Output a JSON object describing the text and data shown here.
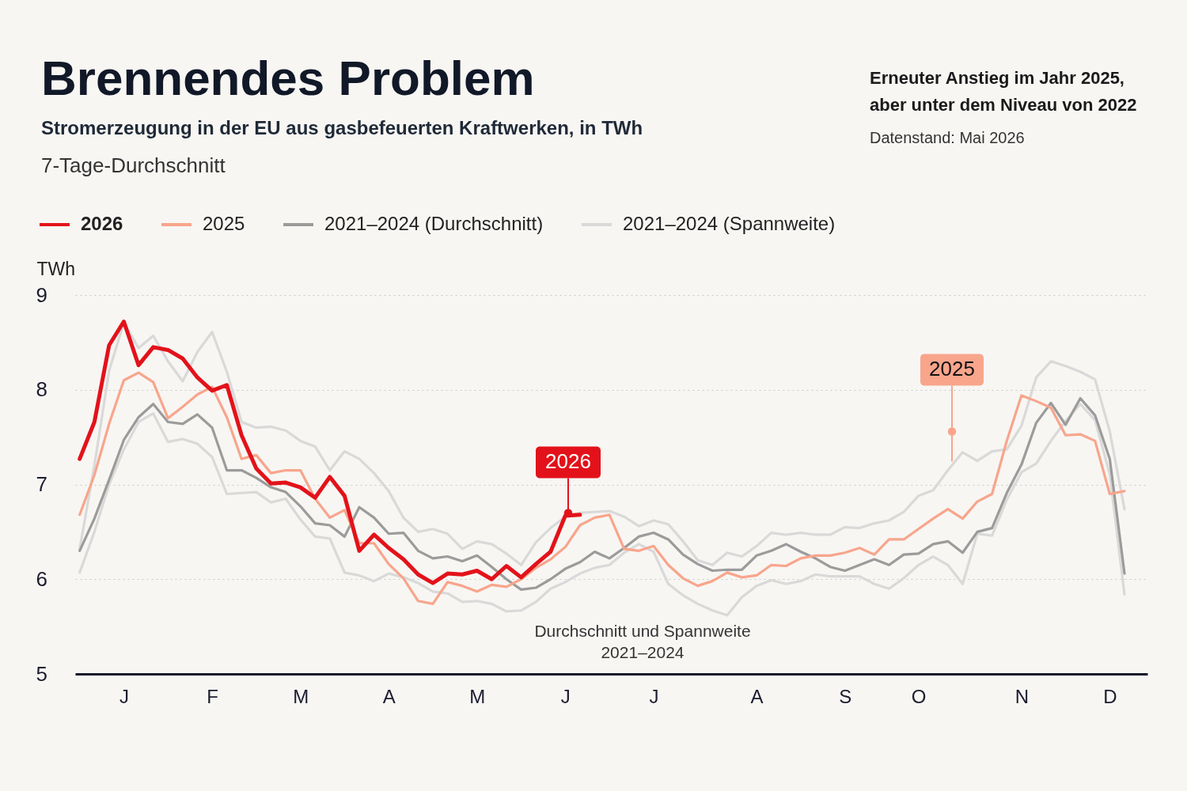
{
  "chart_data": {
    "type": "line",
    "title": "Brennendes Problem",
    "subtitle": "Stromerzeugung in der EU aus gasbefeuerten Kraftwerken, in TWh",
    "ylabel": "TWh",
    "categories": [
      null,
      null,
      null,
      "J",
      null,
      null,
      null,
      null,
      null,
      "F",
      null,
      null,
      null,
      null,
      null,
      "M",
      null,
      null,
      null,
      null,
      null,
      "A",
      null,
      null,
      null,
      null,
      null,
      "M",
      null,
      null,
      null,
      null,
      null,
      "J",
      null,
      null,
      null,
      null,
      null,
      "J",
      null,
      null,
      null,
      null,
      null,
      null,
      "A",
      null,
      null,
      null,
      null,
      null,
      "S",
      null,
      null,
      null,
      null,
      "O",
      null,
      null,
      null,
      null,
      null,
      null,
      "N",
      null,
      null,
      null,
      null,
      null,
      "D",
      null
    ],
    "ylim": [
      5,
      9
    ],
    "yticks": [
      5,
      6,
      7,
      8,
      9
    ],
    "grid": "y",
    "legend": "top left",
    "line_style": "solid",
    "series": [
      {
        "name": "2026",
        "color": "#e3121a",
        "values": [
          7.27,
          7.66,
          8.47,
          8.72,
          8.26,
          8.45,
          8.42,
          8.33,
          8.13,
          7.99,
          8.05,
          7.52,
          7.17,
          7.01,
          7.02,
          6.97,
          6.86,
          7.08,
          6.88,
          6.3,
          6.47,
          6.33,
          6.21,
          6.05,
          5.96,
          6.06,
          6.05,
          6.09,
          6.0,
          6.14,
          6.02,
          6.16,
          6.29,
          6.67,
          6.68,
          null,
          null,
          null,
          null,
          null,
          null,
          null,
          null,
          null,
          null,
          null,
          null,
          null,
          null,
          null,
          null,
          null,
          null,
          null,
          null,
          null,
          null,
          null,
          null,
          null,
          null,
          null,
          null,
          null,
          null,
          null,
          null,
          null,
          null,
          null,
          null,
          null
        ]
      },
      {
        "name": "2025",
        "color": "#f8a58c",
        "values": [
          6.68,
          7.1,
          7.64,
          8.1,
          8.18,
          8.08,
          7.7,
          7.82,
          7.95,
          8.03,
          7.71,
          7.27,
          7.31,
          7.12,
          7.15,
          7.15,
          6.85,
          6.65,
          6.73,
          6.38,
          6.38,
          6.16,
          6.01,
          5.77,
          5.74,
          5.97,
          5.93,
          5.87,
          5.94,
          5.92,
          6.0,
          6.12,
          6.21,
          6.34,
          6.57,
          6.65,
          6.68,
          6.32,
          6.3,
          6.35,
          6.15,
          6.01,
          5.93,
          5.98,
          6.07,
          6.02,
          6.04,
          6.15,
          6.14,
          6.22,
          6.25,
          6.25,
          6.28,
          6.33,
          6.26,
          6.42,
          6.42,
          6.53,
          6.64,
          6.74,
          6.64,
          6.82,
          6.9,
          7.46,
          7.94,
          7.88,
          7.81,
          7.52,
          7.53,
          7.46,
          6.9,
          6.93
        ]
      },
      {
        "name": "2021–2024 (Durchschnitt)",
        "color": "#9b9b9b",
        "values": [
          6.3,
          6.64,
          7.05,
          7.47,
          7.71,
          7.85,
          7.66,
          7.64,
          7.74,
          7.6,
          7.15,
          7.15,
          7.07,
          6.97,
          6.92,
          6.77,
          6.59,
          6.57,
          6.45,
          6.76,
          6.65,
          6.48,
          6.49,
          6.3,
          6.22,
          6.24,
          6.19,
          6.25,
          6.13,
          6.0,
          5.89,
          5.91,
          6.0,
          6.11,
          6.18,
          6.29,
          6.22,
          6.33,
          6.45,
          6.49,
          6.42,
          6.26,
          6.16,
          6.09,
          6.1,
          6.1,
          6.25,
          6.3,
          6.37,
          6.29,
          6.22,
          6.13,
          6.09,
          6.15,
          6.21,
          6.15,
          6.26,
          6.27,
          6.37,
          6.4,
          6.28,
          6.5,
          6.54,
          6.91,
          7.21,
          7.65,
          7.86,
          7.63,
          7.91,
          7.73,
          7.27,
          6.06
        ]
      },
      {
        "name": "2021–2024 (Spannweite)",
        "color": "#d9d9d9",
        "values": [
          6.32,
          7.2,
          8.2,
          8.71,
          8.44,
          8.57,
          8.3,
          8.09,
          8.4,
          8.61,
          8.19,
          7.66,
          7.6,
          7.61,
          7.57,
          7.46,
          7.4,
          7.15,
          7.35,
          7.27,
          7.12,
          6.93,
          6.65,
          6.5,
          6.53,
          6.48,
          6.32,
          6.4,
          6.37,
          6.27,
          6.15,
          6.39,
          6.54,
          6.66,
          6.7,
          6.71,
          6.72,
          6.66,
          6.56,
          6.62,
          6.58,
          6.4,
          6.2,
          6.15,
          6.28,
          6.24,
          6.35,
          6.49,
          6.47,
          6.49,
          6.47,
          6.47,
          6.55,
          6.54,
          6.59,
          6.62,
          6.71,
          6.88,
          6.94,
          7.15,
          7.34,
          7.25,
          7.35,
          7.37,
          7.62,
          8.13,
          8.3,
          8.25,
          8.19,
          8.11,
          7.56,
          6.74
        ]
      },
      {
        "color": "#d9d9d9",
        "values": [
          6.07,
          6.5,
          7.0,
          7.37,
          7.66,
          7.75,
          7.45,
          7.48,
          7.43,
          7.29,
          6.9,
          6.91,
          6.92,
          6.81,
          6.85,
          6.63,
          6.45,
          6.43,
          6.07,
          6.04,
          5.98,
          6.06,
          6.02,
          5.96,
          5.87,
          5.85,
          5.76,
          5.77,
          5.74,
          5.66,
          5.67,
          5.76,
          5.9,
          5.97,
          6.06,
          6.12,
          6.15,
          6.28,
          6.37,
          6.29,
          5.95,
          5.83,
          5.74,
          5.67,
          5.62,
          5.81,
          5.93,
          5.99,
          5.95,
          5.98,
          6.05,
          6.03,
          6.03,
          6.03,
          5.95,
          5.9,
          6.01,
          6.15,
          6.24,
          6.15,
          5.95,
          6.48,
          6.46,
          6.84,
          7.13,
          7.22,
          7.46,
          7.67,
          7.85,
          7.68,
          7.11,
          5.84
        ]
      }
    ],
    "annotations": [
      {
        "text": "2026",
        "y": 6.7
      },
      {
        "text": "2025",
        "y": 7.56
      },
      "Durchschnitt und Spannweite\n2021–2024",
      "7-Tage-Durchschnitt",
      "Erneuter Anstieg im Jahr 2025,\naber unter dem Niveau von 2022",
      "Datenstand: Mai 2026"
    ]
  }
}
